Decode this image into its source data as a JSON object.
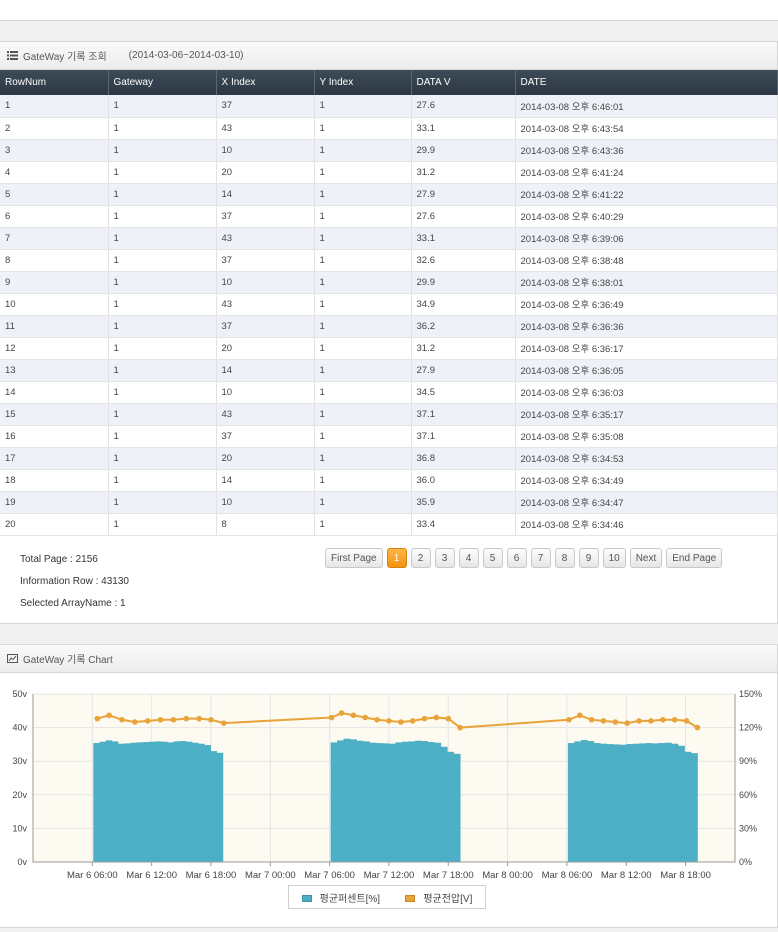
{
  "table_panel": {
    "title": "GateWay 기록 조회",
    "range": "(2014-03-06~2014-03-10)"
  },
  "columns": [
    "RowNum",
    "Gateway",
    "X Index",
    "Y Index",
    "DATA V",
    "DATE"
  ],
  "rows": [
    [
      "1",
      "1",
      "37",
      "1",
      "27.6",
      "2014-03-08 오후 6:46:01"
    ],
    [
      "2",
      "1",
      "43",
      "1",
      "33.1",
      "2014-03-08 오후 6:43:54"
    ],
    [
      "3",
      "1",
      "10",
      "1",
      "29.9",
      "2014-03-08 오후 6:43:36"
    ],
    [
      "4",
      "1",
      "20",
      "1",
      "31.2",
      "2014-03-08 오후 6:41:24"
    ],
    [
      "5",
      "1",
      "14",
      "1",
      "27.9",
      "2014-03-08 오후 6:41:22"
    ],
    [
      "6",
      "1",
      "37",
      "1",
      "27.6",
      "2014-03-08 오후 6:40:29"
    ],
    [
      "7",
      "1",
      "43",
      "1",
      "33.1",
      "2014-03-08 오후 6:39:06"
    ],
    [
      "8",
      "1",
      "37",
      "1",
      "32.6",
      "2014-03-08 오후 6:38:48"
    ],
    [
      "9",
      "1",
      "10",
      "1",
      "29.9",
      "2014-03-08 오후 6:38:01"
    ],
    [
      "10",
      "1",
      "43",
      "1",
      "34.9",
      "2014-03-08 오후 6:36:49"
    ],
    [
      "11",
      "1",
      "37",
      "1",
      "36.2",
      "2014-03-08 오후 6:36:36"
    ],
    [
      "12",
      "1",
      "20",
      "1",
      "31.2",
      "2014-03-08 오후 6:36:17"
    ],
    [
      "13",
      "1",
      "14",
      "1",
      "27.9",
      "2014-03-08 오후 6:36:05"
    ],
    [
      "14",
      "1",
      "10",
      "1",
      "34.5",
      "2014-03-08 오후 6:36:03"
    ],
    [
      "15",
      "1",
      "43",
      "1",
      "37.1",
      "2014-03-08 오후 6:35:17"
    ],
    [
      "16",
      "1",
      "37",
      "1",
      "37.1",
      "2014-03-08 오후 6:35:08"
    ],
    [
      "17",
      "1",
      "20",
      "1",
      "36.8",
      "2014-03-08 오후 6:34:53"
    ],
    [
      "18",
      "1",
      "14",
      "1",
      "36.0",
      "2014-03-08 오후 6:34:49"
    ],
    [
      "19",
      "1",
      "10",
      "1",
      "35.9",
      "2014-03-08 오후 6:34:47"
    ],
    [
      "20",
      "1",
      "8",
      "1",
      "33.4",
      "2014-03-08 오후 6:34:46"
    ]
  ],
  "info": {
    "total_page": "Total Page : 2156",
    "information_row": "Information Row : 43130",
    "selected_array": "Selected ArrayName : 1"
  },
  "pager": {
    "first": "First Page",
    "pages": [
      "1",
      "2",
      "3",
      "4",
      "5",
      "6",
      "7",
      "8",
      "9",
      "10"
    ],
    "active": "1",
    "next": "Next",
    "end": "End Page"
  },
  "chart_panel": {
    "title": "GateWay 기록 Chart"
  },
  "chart_data": {
    "type": "bar",
    "title": "",
    "x_ticks": [
      "Mar 6 06:00",
      "Mar 6 12:00",
      "Mar 6 18:00",
      "Mar 7 00:00",
      "Mar 7 06:00",
      "Mar 7 12:00",
      "Mar 7 18:00",
      "Mar 8 00:00",
      "Mar 8 06:00",
      "Mar 8 12:00",
      "Mar 8 18:00"
    ],
    "x_range_hours": [
      0,
      71
    ],
    "y_left": {
      "ticks": [
        "0v",
        "10v",
        "20v",
        "30v",
        "40v",
        "50v"
      ],
      "range": [
        0,
        50
      ]
    },
    "y_right": {
      "ticks": [
        "0%",
        "30%",
        "60%",
        "90%",
        "120%",
        "150%"
      ],
      "range": [
        0,
        150
      ]
    },
    "grid": true,
    "legend_placement": "bottom",
    "series": [
      {
        "name": "평균퍼센트[%]",
        "axis": "left",
        "render": "bar",
        "color": "#4cafc6",
        "segments": [
          {
            "start_hour": 6.1,
            "end_hour": 19.2,
            "values": [
              35.4,
              35.8,
              36.2,
              35.9,
              35.2,
              35.3,
              35.5,
              35.6,
              35.7,
              35.8,
              35.9,
              35.8,
              35.6,
              35.9,
              36.0,
              35.8,
              35.5,
              35.2,
              34.8,
              33.0,
              32.5
            ]
          },
          {
            "start_hour": 30.1,
            "end_hour": 43.2,
            "values": [
              35.6,
              36.2,
              36.7,
              36.5,
              36.1,
              35.9,
              35.5,
              35.4,
              35.3,
              35.2,
              35.6,
              35.8,
              35.9,
              36.1,
              36.0,
              35.7,
              35.5,
              34.3,
              32.8,
              32.2
            ]
          },
          {
            "start_hour": 54.1,
            "end_hour": 67.2,
            "values": [
              35.4,
              35.9,
              36.3,
              36.0,
              35.4,
              35.2,
              35.1,
              35.0,
              34.9,
              35.1,
              35.2,
              35.3,
              35.4,
              35.3,
              35.4,
              35.5,
              35.2,
              34.6,
              32.8,
              32.4
            ]
          }
        ]
      },
      {
        "name": "평균전압[V]",
        "axis": "right",
        "render": "line",
        "color": "#e8a33a",
        "points": [
          [
            6.5,
            128
          ],
          [
            7.7,
            131
          ],
          [
            9.0,
            127
          ],
          [
            10.3,
            125
          ],
          [
            11.6,
            126
          ],
          [
            12.9,
            127
          ],
          [
            14.2,
            127
          ],
          [
            15.5,
            128
          ],
          [
            16.8,
            128
          ],
          [
            18.0,
            127
          ],
          [
            19.3,
            124
          ],
          [
            30.2,
            129
          ],
          [
            31.2,
            133
          ],
          [
            32.4,
            131
          ],
          [
            33.6,
            129
          ],
          [
            34.8,
            127
          ],
          [
            36.0,
            126
          ],
          [
            37.2,
            125
          ],
          [
            38.4,
            126
          ],
          [
            39.6,
            128
          ],
          [
            40.8,
            129
          ],
          [
            42.0,
            128
          ],
          [
            43.2,
            120
          ],
          [
            54.2,
            127
          ],
          [
            55.3,
            131
          ],
          [
            56.5,
            127
          ],
          [
            57.7,
            126
          ],
          [
            58.9,
            125
          ],
          [
            60.1,
            124
          ],
          [
            61.3,
            126
          ],
          [
            62.5,
            126
          ],
          [
            63.7,
            127
          ],
          [
            64.9,
            127
          ],
          [
            66.1,
            126
          ],
          [
            67.2,
            120
          ]
        ]
      }
    ]
  }
}
